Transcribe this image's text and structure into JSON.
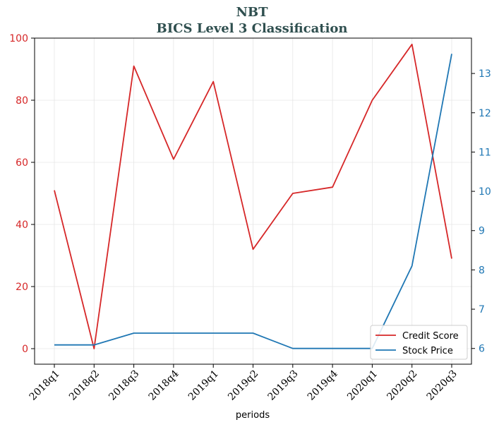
{
  "chart_data": {
    "type": "line",
    "title": "NBT",
    "subtitle": "BICS Level 3 Classification",
    "title_color": "#2f4f4f",
    "xlabel": "periods",
    "categories": [
      "2018q1",
      "2018q2",
      "2018q3",
      "2018q4",
      "2019q1",
      "2019q2",
      "2019q3",
      "2019q4",
      "2020q1",
      "2020q2",
      "2020q3"
    ],
    "grid": true,
    "legend": "lower-right",
    "y_left": {
      "lim": [
        -5,
        100
      ],
      "ticks": [
        0,
        20,
        40,
        60,
        80,
        100
      ],
      "color": "#d62728"
    },
    "y_right": {
      "lim": [
        5.6,
        13.9
      ],
      "ticks": [
        6,
        7,
        8,
        9,
        10,
        11,
        12,
        13
      ],
      "color": "#1f77b4"
    },
    "series": [
      {
        "name": "Credit Score",
        "axis": "left",
        "color": "#d62728",
        "values": [
          51,
          0,
          91,
          61,
          86,
          32,
          50,
          52,
          80,
          98,
          29
        ]
      },
      {
        "name": "Stock Price",
        "axis": "right",
        "color": "#1f77b4",
        "values": [
          6.09,
          6.09,
          6.39,
          6.39,
          6.39,
          6.39,
          6.0,
          6.0,
          6.0,
          8.1,
          13.5
        ]
      }
    ]
  }
}
